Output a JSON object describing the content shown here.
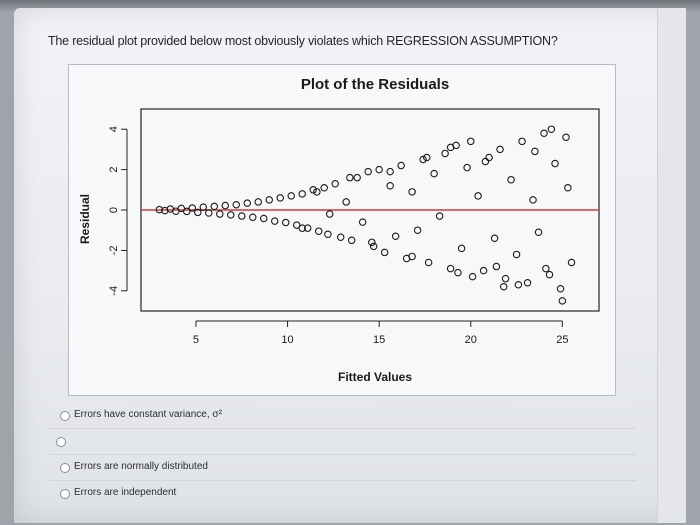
{
  "question": {
    "text": "The residual plot provided below most obviously violates which REGRESSION ASSUMPTION?"
  },
  "answers": [
    {
      "label": "Errors have constant variance, σ²"
    },
    {
      "label": ""
    },
    {
      "label": "Errors are normally distributed"
    },
    {
      "label": "Errors are independent"
    }
  ],
  "chart_data": {
    "type": "scatter",
    "title": "Plot of the Residuals",
    "xlabel": "Fitted Values",
    "ylabel": "Residual",
    "xlim": [
      2,
      27
    ],
    "ylim": [
      -5,
      5
    ],
    "xticks": [
      5,
      10,
      15,
      20,
      25
    ],
    "yticks": [
      4,
      2,
      0,
      -2,
      -4
    ],
    "reference_line": {
      "y": 0,
      "color": "#d03a3a"
    },
    "point_color": "#1b1b1b",
    "pattern": "fan-shaped: residual spread increases with fitted value",
    "points": [
      [
        3.0,
        0.02
      ],
      [
        3.3,
        -0.03
      ],
      [
        3.6,
        0.05
      ],
      [
        3.9,
        -0.06
      ],
      [
        4.2,
        0.08
      ],
      [
        4.5,
        -0.07
      ],
      [
        4.8,
        0.1
      ],
      [
        5.1,
        -0.12
      ],
      [
        5.4,
        0.14
      ],
      [
        5.7,
        -0.15
      ],
      [
        6.0,
        0.18
      ],
      [
        6.3,
        -0.2
      ],
      [
        6.6,
        0.22
      ],
      [
        6.9,
        -0.24
      ],
      [
        7.2,
        0.26
      ],
      [
        7.5,
        -0.3
      ],
      [
        7.8,
        0.34
      ],
      [
        8.1,
        -0.36
      ],
      [
        8.4,
        0.4
      ],
      [
        8.7,
        -0.42
      ],
      [
        9.0,
        0.5
      ],
      [
        9.3,
        -0.55
      ],
      [
        9.6,
        0.6
      ],
      [
        9.9,
        -0.62
      ],
      [
        10.2,
        0.7
      ],
      [
        10.5,
        -0.75
      ],
      [
        10.8,
        0.8
      ],
      [
        11.1,
        -0.9
      ],
      [
        11.4,
        1.0
      ],
      [
        11.7,
        -1.05
      ],
      [
        12.0,
        1.1
      ],
      [
        12.3,
        -0.2
      ],
      [
        12.6,
        1.3
      ],
      [
        12.9,
        -1.35
      ],
      [
        13.2,
        0.4
      ],
      [
        13.5,
        -1.5
      ],
      [
        13.8,
        1.6
      ],
      [
        14.1,
        -0.6
      ],
      [
        14.4,
        1.9
      ],
      [
        14.7,
        -1.8
      ],
      [
        15.0,
        2.0
      ],
      [
        15.3,
        -2.1
      ],
      [
        15.6,
        1.2
      ],
      [
        15.9,
        -1.3
      ],
      [
        16.2,
        2.2
      ],
      [
        16.5,
        -2.4
      ],
      [
        16.8,
        0.9
      ],
      [
        17.1,
        -1.0
      ],
      [
        17.4,
        2.5
      ],
      [
        17.7,
        -2.6
      ],
      [
        18.0,
        1.8
      ],
      [
        18.3,
        -0.3
      ],
      [
        18.6,
        2.8
      ],
      [
        18.9,
        -2.9
      ],
      [
        19.2,
        3.2
      ],
      [
        19.5,
        -1.9
      ],
      [
        19.8,
        2.1
      ],
      [
        20.1,
        -3.3
      ],
      [
        20.4,
        0.7
      ],
      [
        20.7,
        -3.0
      ],
      [
        21.0,
        2.6
      ],
      [
        21.3,
        -1.4
      ],
      [
        21.6,
        3.0
      ],
      [
        21.9,
        -3.4
      ],
      [
        22.2,
        1.5
      ],
      [
        22.5,
        -2.2
      ],
      [
        22.8,
        3.4
      ],
      [
        23.1,
        -3.6
      ],
      [
        23.4,
        0.5
      ],
      [
        23.7,
        -1.1
      ],
      [
        24.0,
        3.8
      ],
      [
        24.3,
        -3.2
      ],
      [
        24.6,
        2.3
      ],
      [
        24.9,
        -3.9
      ],
      [
        25.2,
        3.6
      ],
      [
        25.5,
        -2.6
      ],
      [
        24.4,
        4.0
      ],
      [
        25.0,
        -4.5
      ],
      [
        21.8,
        -3.8
      ],
      [
        20.0,
        3.4
      ],
      [
        22.6,
        -3.7
      ],
      [
        18.9,
        3.1
      ],
      [
        15.6,
        1.9
      ],
      [
        16.8,
        -2.3
      ],
      [
        13.4,
        1.6
      ],
      [
        12.2,
        -1.2
      ],
      [
        17.6,
        2.6
      ],
      [
        19.3,
        -3.1
      ],
      [
        23.5,
        2.9
      ],
      [
        25.3,
        1.1
      ],
      [
        24.1,
        -2.9
      ],
      [
        20.8,
        2.4
      ],
      [
        21.4,
        -2.8
      ],
      [
        14.6,
        -1.6
      ],
      [
        11.6,
        0.9
      ],
      [
        10.8,
        -0.9
      ]
    ]
  }
}
